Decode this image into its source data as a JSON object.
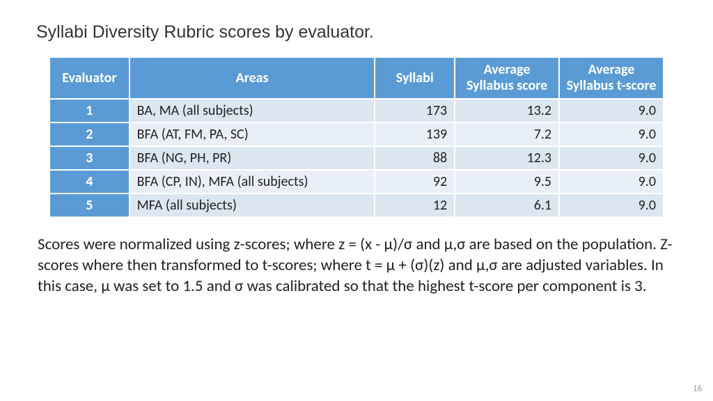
{
  "title": "Syllabi Diversity Rubric scores by evaluator.",
  "table": {
    "type": "table",
    "header_bg": "#5b9bd5",
    "header_fg": "#ffffff",
    "row_odd_bg": "#dce6f1",
    "row_even_bg": "#e9eff7",
    "border_color": "#ffffff",
    "col_widths_pct": [
      13,
      40,
      13,
      17,
      17
    ],
    "col_align": [
      "center",
      "left",
      "right",
      "right",
      "right"
    ],
    "header_fontsize": 20,
    "cell_fontsize": 20,
    "columns": [
      "Evaluator",
      "Areas",
      "Syllabi",
      "Average Syllabus score",
      "Average Syllabus t-score"
    ],
    "rows": [
      [
        "1",
        "BA, MA (all subjects)",
        "173",
        "13.2",
        "9.0"
      ],
      [
        "2",
        "BFA (AT, FM, PA, SC)",
        "139",
        "7.2",
        "9.0"
      ],
      [
        "3",
        "BFA (NG, PH, PR)",
        "88",
        "12.3",
        "9.0"
      ],
      [
        "4",
        "BFA (CP, IN), MFA (all subjects)",
        "92",
        "9.5",
        "9.0"
      ],
      [
        "5",
        "MFA (all subjects)",
        "12",
        "6.1",
        "9.0"
      ]
    ]
  },
  "body_text": "Scores were normalized using z-scores; where z = (x - μ)/σ and μ,σ are based on the population.  Z-scores where then transformed to t-scores; where t = μ + (σ)(z) and μ,σ are adjusted variables.  In this case, μ was set to 1.5 and σ was calibrated so that the highest t-score per component is 3.",
  "page_number": "16",
  "colors": {
    "background": "#ffffff",
    "title_color": "#333333",
    "body_color": "#222222",
    "pagenum_color": "#9a9a9a"
  }
}
